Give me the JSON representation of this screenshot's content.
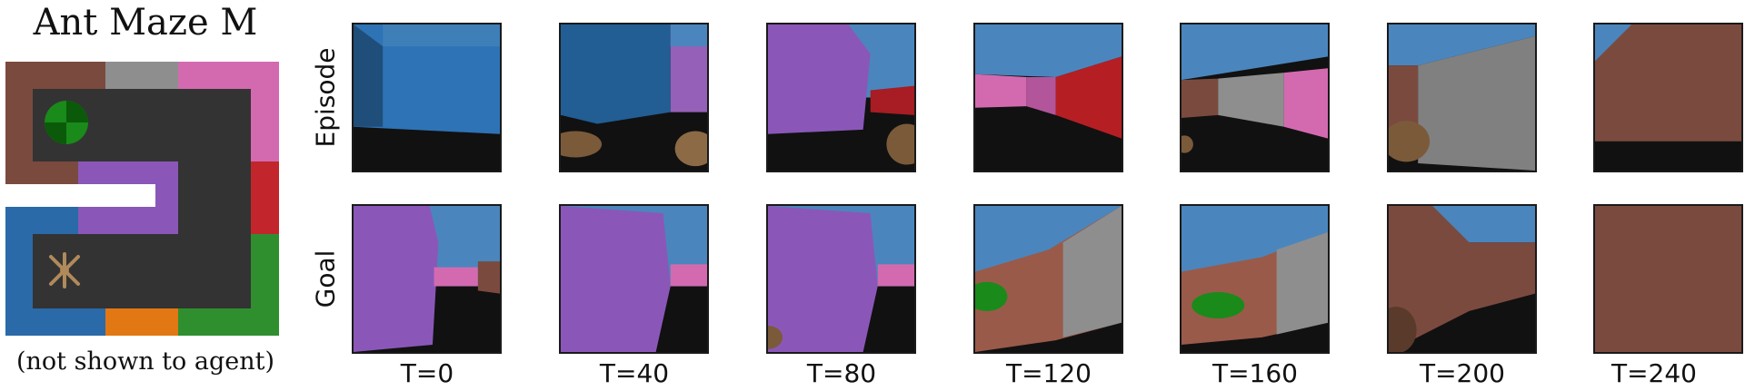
{
  "panel": {
    "title": "Ant Maze M",
    "note": "(not shown to agent)"
  },
  "rows": {
    "episode_label": "Episode",
    "goal_label": "Goal"
  },
  "timesteps": [
    "T=0",
    "T=40",
    "T=80",
    "T=120",
    "T=160",
    "T=200",
    "T=240"
  ],
  "colors": {
    "maze_floor": "#333333",
    "wall_brown": "#7b4a3f",
    "wall_gray": "#8e8e8e",
    "wall_pink": "#d36ab0",
    "wall_red": "#c2262c",
    "wall_green": "#2f8f2f",
    "wall_orange": "#e27814",
    "wall_blue": "#2a6aa8",
    "wall_purple": "#8a57b8",
    "sky": "#4a86bd",
    "ground": "#111111",
    "ant_leg": "#7b5a3a",
    "goal_ball": "#1a8a1a"
  },
  "icons": {
    "goal": "green-sphere-goal-icon",
    "agent": "ant-agent-icon"
  }
}
